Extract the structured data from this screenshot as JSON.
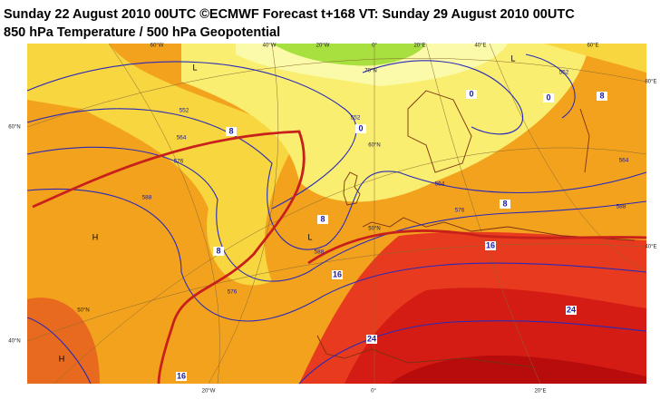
{
  "header": {
    "title_line1": "Sunday 22 August 2010 00UTC ©ECMWF Forecast t+168 VT: Sunday 29 August 2010 00UTC",
    "title_line2": "850 hPa Temperature / 500 hPa Geopotential"
  },
  "map": {
    "graticule_labels": [
      "60°W",
      "40°W",
      "20°W",
      "0°",
      "20°E",
      "40°E",
      "60°E",
      "80°E",
      "40°E",
      "60°N",
      "40°N",
      "70°N",
      "60°N",
      "50°N",
      "50°N",
      "20°W",
      "0°",
      "20°E"
    ],
    "geopotential_labels": [
      "552",
      "564",
      "576",
      "588",
      "552",
      "564",
      "576",
      "588",
      "576",
      "588",
      "564",
      "552"
    ],
    "temperature_labels": [
      "0",
      "0",
      "0",
      "8",
      "8",
      "8",
      "8",
      "8",
      "16",
      "16",
      "16",
      "24",
      "24"
    ],
    "pressure_centers": [
      "H",
      "H",
      "L",
      "L",
      "L"
    ]
  }
}
